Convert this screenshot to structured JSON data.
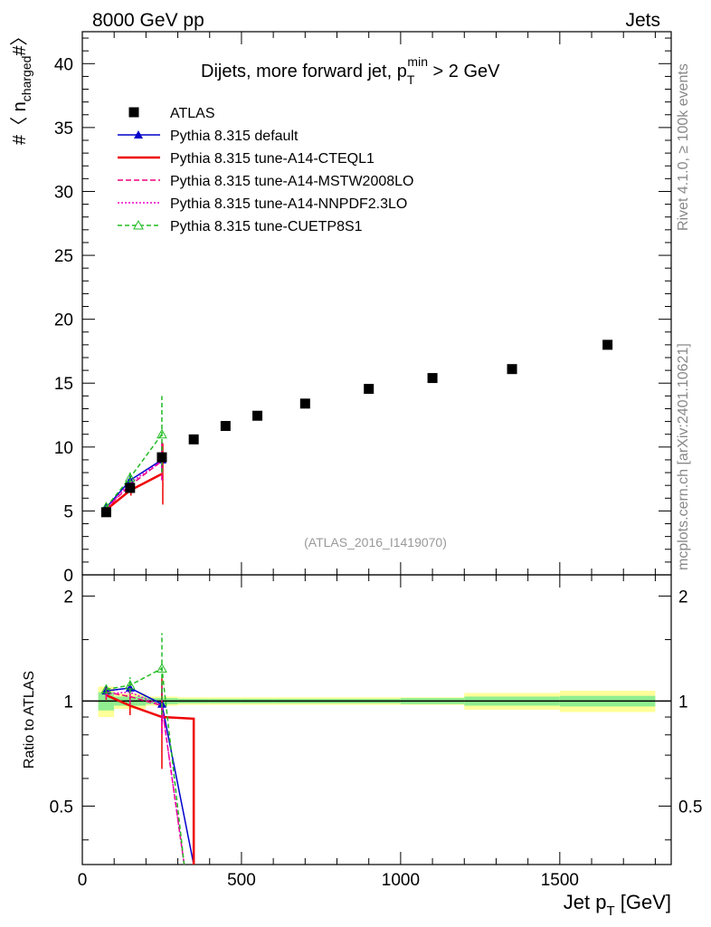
{
  "header": {
    "left": "8000 GeV pp",
    "right": "Jets"
  },
  "side_labels": {
    "rivet": "Rivet 4.1.0, ≥ 100k events",
    "mcplots": "mcplots.cern.ch [arXiv:2401.10621]"
  },
  "chart_data": {
    "type": "line",
    "title_main": "Dijets, more forward jet, p",
    "title_sup": "min",
    "title_sub": "T",
    "title_rest": " > 2 GeV",
    "analysis_label": "(ATLAS_2016_I1419070)",
    "xlabel_main": "Jet p",
    "xlabel_sub": "T",
    "xlabel_rest": " [GeV]",
    "ylabel_main": "#〈 n",
    "ylabel_sub": "charged",
    "ylabel_rest": "#〉",
    "ratio_ylabel": "Ratio to ATLAS",
    "xlim": [
      0,
      1850
    ],
    "ylim": [
      0,
      42.5
    ],
    "ratio_ylim": [
      0.34,
      2.3
    ],
    "x_ticks": [
      "0",
      "500",
      "1000",
      "1500"
    ],
    "x_tick_values": [
      0,
      500,
      1000,
      1500
    ],
    "y_ticks": [
      "0",
      "5",
      "10",
      "15",
      "20",
      "25",
      "30",
      "35",
      "40"
    ],
    "y_tick_values": [
      0,
      5,
      10,
      15,
      20,
      25,
      30,
      35,
      40
    ],
    "ratio_ticks": [
      "0.5",
      "1",
      "2"
    ],
    "ratio_tick_values": [
      0.5,
      1,
      2
    ],
    "data": {
      "name": "ATLAS",
      "x": [
        75,
        150,
        250,
        350,
        450,
        550,
        700,
        900,
        1100,
        1350,
        1650
      ],
      "y": [
        4.9,
        6.8,
        9.2,
        10.6,
        11.65,
        12.45,
        13.4,
        14.55,
        15.4,
        16.1,
        18.0
      ],
      "bins": [
        [
          50,
          100
        ],
        [
          100,
          200
        ],
        [
          200,
          300
        ],
        [
          300,
          400
        ],
        [
          400,
          500
        ],
        [
          500,
          600
        ],
        [
          600,
          800
        ],
        [
          800,
          1000
        ],
        [
          1000,
          1200
        ],
        [
          1200,
          1500
        ],
        [
          1500,
          1800
        ]
      ],
      "band_stat": [
        0.06,
        0.03,
        0.02,
        0.015,
        0.015,
        0.015,
        0.015,
        0.015,
        0.02,
        0.03,
        0.035
      ],
      "band_total": [
        0.1,
        0.05,
        0.03,
        0.025,
        0.025,
        0.025,
        0.025,
        0.025,
        0.025,
        0.055,
        0.07
      ]
    },
    "series": [
      {
        "name": "Pythia 8.315 default",
        "color": "#0000cc",
        "dash": "",
        "marker": "tri-filled",
        "x": [
          75,
          150,
          250
        ],
        "y": [
          5.25,
          7.4,
          9.0
        ],
        "err": [
          0.15,
          0.35,
          1.0
        ],
        "ratio": [
          1.07,
          1.09,
          0.98
        ],
        "ratio_tail": [
          [
            350,
            0.34
          ],
          [
            300,
            0.98
          ]
        ]
      },
      {
        "name": "Pythia 8.315 tune-A14-CTEQL1",
        "color": "#ee0000",
        "dash": "",
        "marker": "none",
        "x": [
          75,
          150,
          250
        ],
        "y": [
          5.1,
          6.6,
          7.9
        ],
        "err": [
          0.15,
          0.4,
          2.4
        ],
        "ratio": [
          1.04,
          0.97,
          0.9
        ],
        "ratio_tail": [
          [
            350,
            0.89
          ],
          [
            350,
            0.34
          ]
        ]
      },
      {
        "name": "Pythia 8.315 tune-A14-MSTW2008LO",
        "color": "#ee0077",
        "dash": "6,3",
        "marker": "none",
        "x": [
          75,
          150,
          250
        ],
        "y": [
          5.2,
          7.0,
          8.9
        ],
        "err": [
          0.15,
          0.4,
          1.5
        ],
        "ratio": [
          1.06,
          1.03,
          0.97
        ],
        "ratio_tail": []
      },
      {
        "name": "Pythia 8.315 tune-A14-NNPDF2.3LO",
        "color": "#ee00cc",
        "dash": "2,2",
        "marker": "none",
        "x": [
          75,
          150,
          250
        ],
        "y": [
          5.15,
          7.2,
          8.9
        ],
        "err": [
          0.15,
          0.4,
          1.5
        ],
        "ratio": [
          1.05,
          1.06,
          0.97
        ],
        "ratio_tail": []
      },
      {
        "name": "Pythia 8.315 tune-CUETP8S1",
        "color": "#22bb22",
        "dash": "5,3",
        "marker": "tri-open",
        "x": [
          75,
          150,
          250
        ],
        "y": [
          5.3,
          7.6,
          11.0
        ],
        "err": [
          0.15,
          0.4,
          3.0
        ],
        "ratio": [
          1.08,
          1.11,
          1.24
        ],
        "ratio_tail": []
      }
    ]
  }
}
